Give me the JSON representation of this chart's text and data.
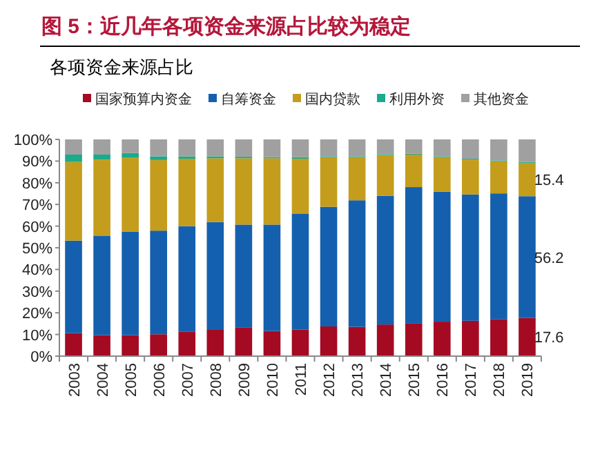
{
  "chart_data": {
    "type": "bar",
    "stacked": true,
    "title": "图 5：近几年各项资金来源占比较为稳定",
    "subtitle": "各项资金来源占比",
    "categories": [
      "2003",
      "2004",
      "2005",
      "2006",
      "2007",
      "2008",
      "2009",
      "2010",
      "2011",
      "2012",
      "2013",
      "2014",
      "2015",
      "2016",
      "2017",
      "2018",
      "2019"
    ],
    "series": [
      {
        "name": "国家预算内资金",
        "color": "#a50a23",
        "values": [
          10.6,
          9.7,
          9.7,
          10.1,
          11.2,
          12.1,
          13.1,
          11.6,
          12.3,
          13.7,
          13.5,
          14.6,
          15.0,
          15.9,
          16.3,
          17.1,
          17.6
        ],
        "value_labels": [
          null,
          null,
          null,
          null,
          null,
          null,
          null,
          null,
          null,
          null,
          null,
          null,
          null,
          null,
          null,
          null,
          "17.6"
        ]
      },
      {
        "name": "自筹资金",
        "color": "#1560ae",
        "values": [
          42.7,
          45.9,
          47.8,
          47.8,
          48.8,
          49.8,
          47.6,
          49.1,
          53.5,
          55.2,
          58.4,
          59.4,
          63.0,
          60.0,
          58.3,
          58.0,
          56.2
        ],
        "value_labels": [
          null,
          null,
          null,
          null,
          null,
          null,
          null,
          null,
          null,
          null,
          null,
          null,
          null,
          null,
          null,
          null,
          "56.2"
        ]
      },
      {
        "name": "国内贷款",
        "color": "#c49d1c",
        "values": [
          36.3,
          35.1,
          34.0,
          32.6,
          31.1,
          29.4,
          30.6,
          30.6,
          25.3,
          22.9,
          19.9,
          18.8,
          15.0,
          15.9,
          16.1,
          14.8,
          15.4
        ],
        "value_labels": [
          null,
          null,
          null,
          null,
          null,
          null,
          null,
          null,
          null,
          null,
          null,
          null,
          null,
          null,
          null,
          null,
          "15.4"
        ]
      },
      {
        "name": "利用外资",
        "color": "#1aaa8c",
        "values": [
          3.4,
          2.3,
          2.2,
          1.7,
          1.1,
          0.9,
          0.7,
          0.5,
          0.7,
          0.4,
          0.4,
          0.4,
          0.4,
          0.4,
          0.4,
          0.4,
          0.4
        ]
      },
      {
        "name": "其他资金",
        "color": "#a0a0a0",
        "values": [
          7.0,
          7.0,
          6.3,
          7.8,
          7.8,
          7.8,
          8.0,
          8.2,
          8.2,
          7.8,
          7.8,
          6.8,
          6.6,
          7.8,
          8.9,
          9.7,
          10.4
        ]
      }
    ],
    "ylim": [
      0,
      100
    ],
    "yticks": [
      {
        "value": 0,
        "label": "0%"
      },
      {
        "value": 10,
        "label": "10%"
      },
      {
        "value": 20,
        "label": "20%"
      },
      {
        "value": 30,
        "label": "30%"
      },
      {
        "value": 40,
        "label": "40%"
      },
      {
        "value": 50,
        "label": "50%"
      },
      {
        "value": 60,
        "label": "60%"
      },
      {
        "value": 70,
        "label": "70%"
      },
      {
        "value": 80,
        "label": "80%"
      },
      {
        "value": 90,
        "label": "90%"
      },
      {
        "value": 100,
        "label": "100%"
      }
    ],
    "legend": "top",
    "grid": false
  }
}
